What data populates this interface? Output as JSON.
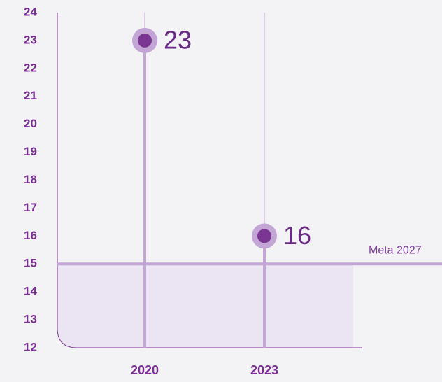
{
  "chart_data": {
    "type": "lollipop",
    "categories": [
      "2020",
      "2023"
    ],
    "values": [
      23,
      16
    ],
    "color": "#7b3593",
    "ylim": [
      12,
      24
    ],
    "yticks": [
      12,
      13,
      14,
      15,
      16,
      17,
      18,
      19,
      20,
      21,
      22,
      23,
      24
    ],
    "target": {
      "value": 15,
      "label": "Meta 2027"
    }
  }
}
